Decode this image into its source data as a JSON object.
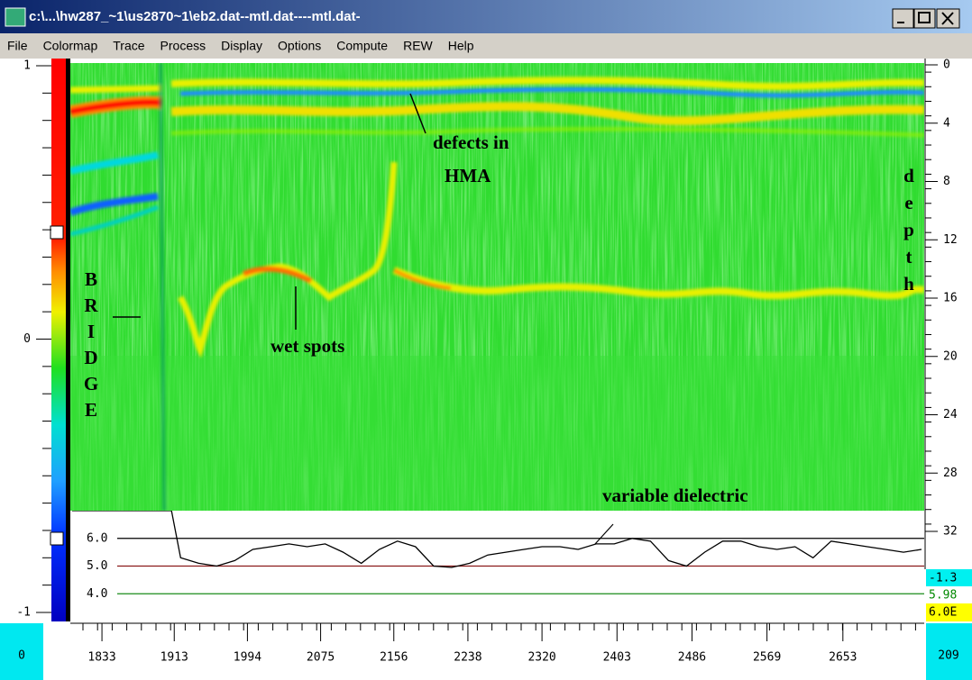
{
  "window": {
    "title": "c:\\...\\hw287_~1\\us2870~1\\eb2.dat--mtl.dat----mtl.dat-"
  },
  "menu": [
    "File",
    "Colormap",
    "Trace",
    "Process",
    "Display",
    "Options",
    "Compute",
    "REW",
    "Help"
  ],
  "colorbar": {
    "ticks": [
      1,
      0,
      -1
    ]
  },
  "depth_axis": {
    "label": "depth",
    "ticks": [
      0,
      4,
      8,
      12,
      16,
      20,
      24,
      28,
      32
    ],
    "lim": [
      0,
      32
    ]
  },
  "trace_axis": {
    "xlim": [
      1798,
      2743
    ],
    "xticks": [
      1833,
      1913,
      1994,
      2075,
      2156,
      2238,
      2320,
      2403,
      2486,
      2569,
      2653
    ]
  },
  "annotations": {
    "defects_line1": "defects in",
    "defects_line2": "HMA",
    "wet_spots": "wet spots",
    "bridge": "BRIDGE",
    "variable_dielectric": "variable dielectric"
  },
  "dielectric_plot": {
    "type": "line",
    "ylim": [
      3,
      7
    ],
    "yticks": [
      {
        "value": 6,
        "label": "6.0",
        "color": "#000000"
      },
      {
        "value": 5,
        "label": "5.0",
        "color": "#8b1a1a"
      },
      {
        "value": 4,
        "label": "4.0",
        "color": "#1a8b1a"
      }
    ],
    "color": "#000000",
    "x": [
      1800,
      1820,
      1840,
      1860,
      1880,
      1900,
      1910,
      1920,
      1940,
      1960,
      1980,
      2000,
      2020,
      2040,
      2060,
      2080,
      2100,
      2120,
      2140,
      2160,
      2180,
      2200,
      2220,
      2240,
      2260,
      2280,
      2300,
      2320,
      2340,
      2360,
      2380,
      2400,
      2420,
      2440,
      2460,
      2480,
      2500,
      2520,
      2540,
      2560,
      2580,
      2600,
      2620,
      2640,
      2660,
      2680,
      2700,
      2720,
      2740
    ],
    "values": [
      7,
      7,
      7,
      7,
      7,
      7,
      7,
      5.3,
      5.1,
      5.0,
      5.2,
      5.6,
      5.7,
      5.8,
      5.7,
      5.8,
      5.5,
      5.1,
      5.6,
      5.9,
      5.7,
      5.0,
      4.95,
      5.1,
      5.4,
      5.5,
      5.6,
      5.7,
      5.7,
      5.6,
      5.8,
      5.8,
      6.0,
      5.9,
      5.2,
      5.0,
      5.5,
      5.9,
      5.9,
      5.7,
      5.6,
      5.7,
      5.3,
      5.9,
      5.8,
      5.7,
      5.6,
      5.5,
      5.6
    ]
  },
  "readouts": [
    "-1.3",
    "5.98",
    "6.0E"
  ],
  "corner_left": "0",
  "corner_right": "209"
}
